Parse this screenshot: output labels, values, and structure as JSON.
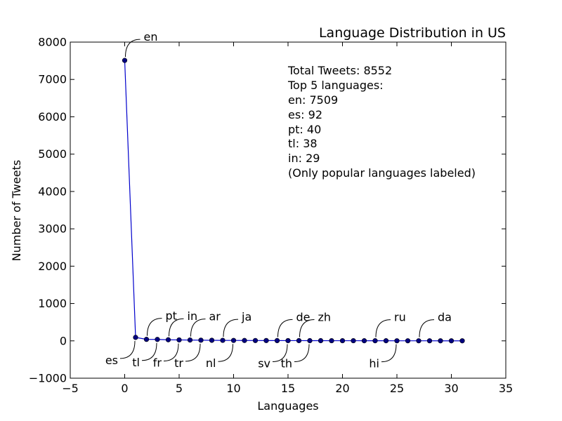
{
  "chart_data": {
    "type": "line",
    "title": "Language Distribution in US",
    "xlabel": "Languages",
    "ylabel": "Number of Tweets",
    "xlim": [
      -5,
      35
    ],
    "ylim": [
      -1000,
      8000
    ],
    "xticks": [
      -5,
      0,
      5,
      10,
      15,
      20,
      25,
      30,
      35
    ],
    "yticks": [
      -1000,
      0,
      1000,
      2000,
      3000,
      4000,
      5000,
      6000,
      7000,
      8000
    ],
    "xtick_labels": [
      "−5",
      "0",
      "5",
      "10",
      "15",
      "20",
      "25",
      "30",
      "35"
    ],
    "ytick_labels": [
      "−1000",
      "0",
      "1000",
      "2000",
      "3000",
      "4000",
      "5000",
      "6000",
      "7000",
      "8000"
    ],
    "grid": false,
    "series_color": "#0000cc",
    "marker_color": "#000080",
    "x": [
      0,
      1,
      2,
      3,
      4,
      5,
      6,
      7,
      8,
      9,
      10,
      11,
      12,
      13,
      14,
      15,
      16,
      17,
      18,
      19,
      20,
      21,
      22,
      23,
      24,
      25,
      26,
      27,
      28,
      29,
      30,
      31
    ],
    "values": [
      7509,
      92,
      40,
      38,
      29,
      25,
      22,
      18,
      15,
      13,
      11,
      10,
      9,
      8,
      7,
      6,
      6,
      5,
      5,
      4,
      4,
      4,
      3,
      3,
      3,
      2,
      2,
      2,
      2,
      1,
      1,
      1
    ],
    "annotations": [
      {
        "label": "en",
        "x": 0,
        "side": "above"
      },
      {
        "label": "es",
        "x": 1,
        "side": "below"
      },
      {
        "label": "pt",
        "x": 2,
        "side": "above"
      },
      {
        "label": "tl",
        "x": 3,
        "side": "below"
      },
      {
        "label": "in",
        "x": 4,
        "side": "above"
      },
      {
        "label": "fr",
        "x": 5,
        "side": "below"
      },
      {
        "label": "ar",
        "x": 6,
        "side": "above"
      },
      {
        "label": "tr",
        "x": 7,
        "side": "below"
      },
      {
        "label": "ja",
        "x": 9,
        "side": "above"
      },
      {
        "label": "nl",
        "x": 10,
        "side": "below"
      },
      {
        "label": "de",
        "x": 14,
        "side": "above"
      },
      {
        "label": "sv",
        "x": 15,
        "side": "below"
      },
      {
        "label": "zh",
        "x": 16,
        "side": "above"
      },
      {
        "label": "th",
        "x": 17,
        "side": "below"
      },
      {
        "label": "ru",
        "x": 23,
        "side": "above"
      },
      {
        "label": "hi",
        "x": 25,
        "side": "below"
      },
      {
        "label": "da",
        "x": 27,
        "side": "above"
      }
    ],
    "text_box": [
      "Total Tweets: 8552",
      "Top 5 languages:",
      "en: 7509",
      "es: 92",
      "pt: 40",
      "tl: 38",
      "in: 29",
      "(Only popular languages labeled)"
    ]
  }
}
